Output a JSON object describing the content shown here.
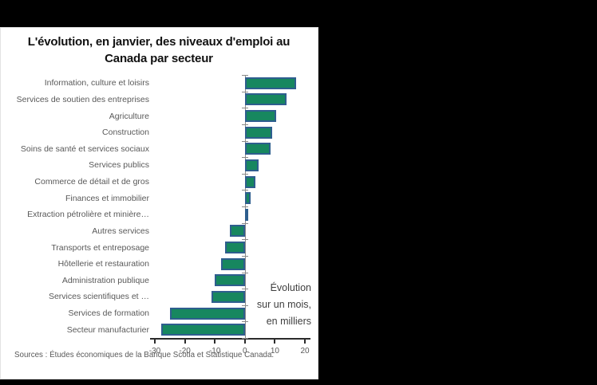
{
  "window": {
    "background_color": "#000000",
    "panel_color": "#ffffff"
  },
  "chart_data": {
    "type": "bar",
    "orientation": "horizontal",
    "title": "L'évolution, en janvier, des niveaux d'emploi au Canada par secteur",
    "categories": [
      "Information, culture et loisirs",
      "Services de soutien des entreprises",
      "Agriculture",
      "Construction",
      "Soins de santé et services sociaux",
      "Services publics",
      "Commerce de détail et de gros",
      "Finances et immobilier",
      "Extraction pétrolière et minière…",
      "Autres services",
      "Transports et entreposage",
      "Hôtellerie et restauration",
      "Administration publique",
      "Services scientifiques et …",
      "Services de formation",
      "Secteur manufacturier"
    ],
    "values": [
      17,
      14,
      10.5,
      9,
      8.5,
      4.5,
      3.5,
      2,
      0.5,
      -5,
      -6.5,
      -8,
      -10,
      -11,
      -25,
      -28
    ],
    "xlabel": "",
    "ylabel": "",
    "xlim": [
      -30,
      20
    ],
    "xticks": [
      -30,
      -20,
      -10,
      0,
      10,
      20
    ],
    "grid": false,
    "legend": false,
    "annotation": "Évolution sur un mois, en milliers",
    "annotation_lines": [
      "Évolution",
      "sur un mois,",
      "en milliers"
    ],
    "source": "Sources : Études économiques de la Banque Scotia et Statistique Canada.",
    "bar_fill_color": "#17875f",
    "bar_border_color": "#2e5e8e",
    "axis_color": "#2b2b2b",
    "label_color": "#595959"
  }
}
